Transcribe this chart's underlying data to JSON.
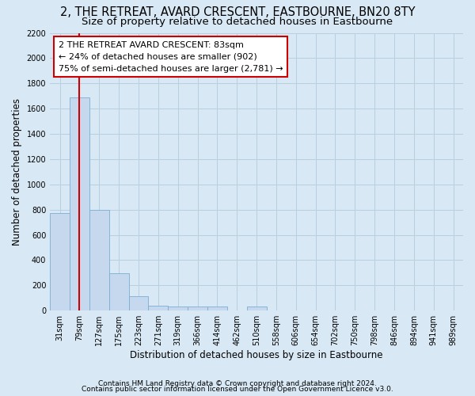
{
  "title": "2, THE RETREAT, AVARD CRESCENT, EASTBOURNE, BN20 8TY",
  "subtitle": "Size of property relative to detached houses in Eastbourne",
  "xlabel": "Distribution of detached houses by size in Eastbourne",
  "ylabel": "Number of detached properties",
  "footnote1": "Contains HM Land Registry data © Crown copyright and database right 2024.",
  "footnote2": "Contains public sector information licensed under the Open Government Licence v3.0.",
  "categories": [
    "31sqm",
    "79sqm",
    "127sqm",
    "175sqm",
    "223sqm",
    "271sqm",
    "319sqm",
    "366sqm",
    "414sqm",
    "462sqm",
    "510sqm",
    "558sqm",
    "606sqm",
    "654sqm",
    "702sqm",
    "750sqm",
    "798sqm",
    "846sqm",
    "894sqm",
    "941sqm",
    "989sqm"
  ],
  "values": [
    770,
    1690,
    800,
    295,
    115,
    40,
    30,
    30,
    30,
    0,
    30,
    0,
    0,
    0,
    0,
    0,
    0,
    0,
    0,
    0,
    0
  ],
  "bar_color": "#c5d8ee",
  "bar_edge_color": "#7aafd4",
  "red_line_x": 1.0,
  "annotation_text": "2 THE RETREAT AVARD CRESCENT: 83sqm\n← 24% of detached houses are smaller (902)\n75% of semi-detached houses are larger (2,781) →",
  "annotation_box_color": "#ffffff",
  "annotation_box_edge": "#cc0000",
  "red_line_color": "#cc0000",
  "ylim": [
    0,
    2200
  ],
  "yticks": [
    0,
    200,
    400,
    600,
    800,
    1000,
    1200,
    1400,
    1600,
    1800,
    2000,
    2200
  ],
  "grid_color": "#b8cfe0",
  "bg_color": "#d8e8f4",
  "title_fontsize": 10.5,
  "subtitle_fontsize": 9.5,
  "axis_fontsize": 8.5,
  "tick_fontsize": 7,
  "annotation_fontsize": 8,
  "footnote_fontsize": 6.5
}
